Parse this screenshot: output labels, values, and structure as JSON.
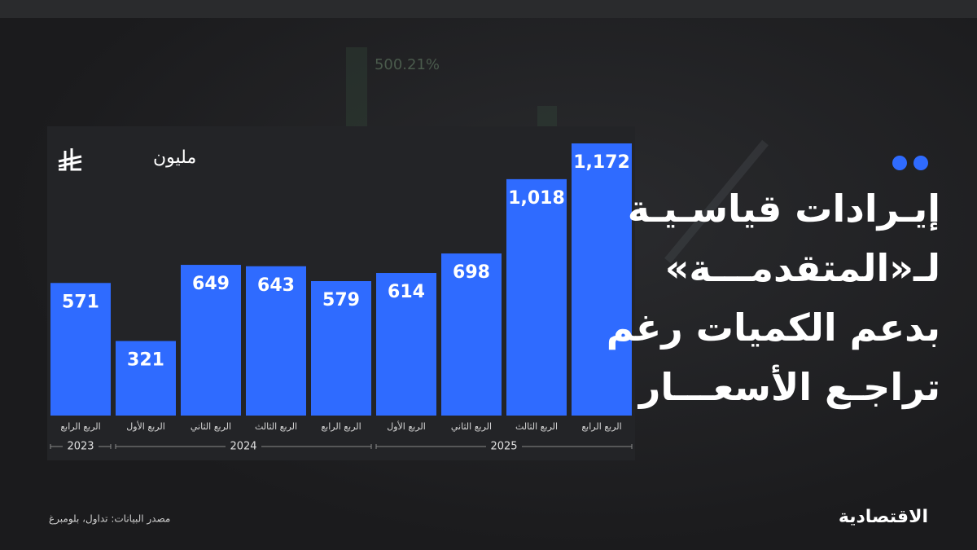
{
  "header": {
    "title_lines": [
      "إيـرادات قياسـيـة",
      "لـ«المتقدمـــة»",
      "بدعم الكميات رغم",
      "تراجـع الأسعـــار"
    ],
    "background_text": "500.21%"
  },
  "chart_data": {
    "type": "bar",
    "unit": "مليون",
    "color": "#2f6bff",
    "groups": [
      {
        "name": "2023",
        "categories": [
          "الربع الرابع"
        ],
        "values": [
          571
        ]
      },
      {
        "name": "2024",
        "categories": [
          "الربع الأول",
          "الربع الثاني",
          "الربع الثالث",
          "الربع الرابع"
        ],
        "values": [
          321,
          649,
          643,
          579
        ]
      },
      {
        "name": "2025",
        "categories": [
          "الربع الأول",
          "الربع الثاني",
          "الربع الثالث",
          "الربع الرابع"
        ],
        "values": [
          614,
          698,
          1018,
          1172
        ],
        "value_labels": [
          "614",
          "698",
          "1,018",
          "1,172"
        ]
      }
    ]
  },
  "footer": {
    "source": "مصدر البيانات: تداول، بلومبرغ",
    "logo": "الاقتصادية"
  }
}
